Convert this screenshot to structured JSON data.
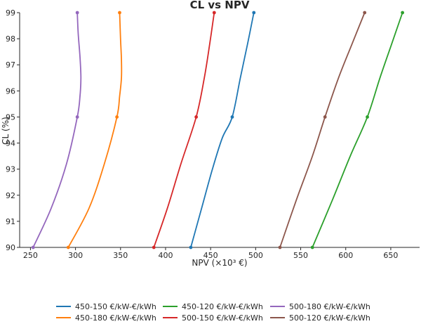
{
  "chart_data": {
    "type": "line",
    "title": "CL vs NPV",
    "xlabel": "NPV (×10³ €)",
    "ylabel": "CL (%)",
    "xlim": [
      238,
      682
    ],
    "ylim": [
      90,
      99
    ],
    "xticks": [
      250,
      300,
      350,
      400,
      450,
      500,
      550,
      600,
      650
    ],
    "yticks": [
      90,
      91,
      92,
      93,
      94,
      95,
      96,
      97,
      98,
      99
    ],
    "grid": false,
    "legend_position": "bottom",
    "legend_columns": 3,
    "series": [
      {
        "name": "450-150 €/kW-€/kWh",
        "color": "#1f77b4",
        "x": [
          428,
          440,
          452,
          463,
          474,
          483,
          491,
          498
        ],
        "y": [
          90,
          91.5,
          93,
          94.2,
          95,
          96.5,
          97.8,
          99
        ],
        "markers": [
          [
            428,
            90
          ],
          [
            474,
            95
          ],
          [
            498,
            99
          ]
        ]
      },
      {
        "name": "450-180 €/kW-€/kWh",
        "color": "#ff7f0e",
        "x": [
          292,
          315,
          332,
          346,
          349,
          351,
          351,
          350,
          349
        ],
        "y": [
          90,
          91.5,
          93.2,
          95,
          95.8,
          96.5,
          97.2,
          98,
          99
        ],
        "markers": [
          [
            292,
            90
          ],
          [
            346,
            95
          ],
          [
            349,
            99
          ]
        ]
      },
      {
        "name": "450-120 €/kW-€/kWh",
        "color": "#2ca02c",
        "x": [
          563,
          585,
          605,
          624,
          638,
          651,
          663
        ],
        "y": [
          90,
          91.8,
          93.5,
          95,
          96.5,
          97.8,
          99
        ],
        "markers": [
          [
            563,
            90
          ],
          [
            624,
            95
          ],
          [
            663,
            99
          ]
        ]
      },
      {
        "name": "500-150 €/kW-€/kWh",
        "color": "#d62728",
        "x": [
          387,
          402,
          417,
          434,
          443,
          449,
          454
        ],
        "y": [
          90,
          91.5,
          93.2,
          95,
          96.5,
          97.8,
          99
        ],
        "markers": [
          [
            387,
            90
          ],
          [
            434,
            95
          ],
          [
            454,
            99
          ]
        ]
      },
      {
        "name": "500-180 €/kW-€/kWh",
        "color": "#9467bd",
        "x": [
          253,
          273,
          290,
          302,
          305,
          306,
          305,
          303,
          302
        ],
        "y": [
          90,
          91.5,
          93.2,
          95,
          95.8,
          96.5,
          97.3,
          98.2,
          99
        ],
        "markers": [
          [
            253,
            90
          ],
          [
            302,
            95
          ],
          [
            302,
            99
          ]
        ]
      },
      {
        "name": "500-120 €/kW-€/kWh",
        "color": "#8c564b",
        "x": [
          527,
          545,
          563,
          577,
          592,
          607,
          621
        ],
        "y": [
          90,
          91.8,
          93.5,
          95,
          96.5,
          97.8,
          99
        ],
        "markers": [
          [
            527,
            90
          ],
          [
            577,
            95
          ],
          [
            621,
            99
          ]
        ]
      }
    ]
  }
}
